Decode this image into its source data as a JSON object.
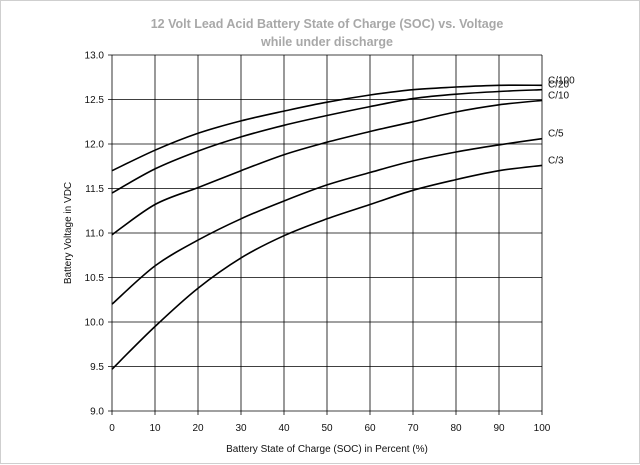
{
  "chart_data": {
    "type": "line",
    "title": "12 Volt Lead Acid Battery State of Charge (SOC) vs. Voltage",
    "subtitle": "while under discharge",
    "xlabel": "Battery State of Charge (SOC) in Percent (%)",
    "ylabel": "Battery Voltage in VDC",
    "xlim": [
      0,
      100
    ],
    "ylim": [
      9.0,
      13.0
    ],
    "xticks": [
      "0",
      "10",
      "20",
      "30",
      "40",
      "50",
      "60",
      "70",
      "80",
      "90",
      "100"
    ],
    "yticks": [
      "9.0",
      "9.5",
      "10.0",
      "10.5",
      "11.0",
      "11.5",
      "12.0",
      "12.5",
      "13.0"
    ],
    "grid": true,
    "x": [
      0,
      10,
      20,
      30,
      40,
      50,
      60,
      70,
      80,
      90,
      100
    ],
    "series": [
      {
        "name": "C/100",
        "values": [
          11.7,
          11.93,
          12.12,
          12.26,
          12.37,
          12.47,
          12.55,
          12.61,
          12.64,
          12.66,
          12.66
        ]
      },
      {
        "name": "C/20",
        "values": [
          11.45,
          11.72,
          11.92,
          12.08,
          12.21,
          12.32,
          12.42,
          12.51,
          12.56,
          12.59,
          12.61
        ]
      },
      {
        "name": "C/10",
        "values": [
          10.98,
          11.32,
          11.51,
          11.7,
          11.88,
          12.02,
          12.14,
          12.25,
          12.36,
          12.44,
          12.49
        ]
      },
      {
        "name": "C/5",
        "values": [
          10.2,
          10.63,
          10.92,
          11.16,
          11.36,
          11.54,
          11.68,
          11.81,
          11.91,
          11.99,
          12.06
        ]
      },
      {
        "name": "C/3",
        "values": [
          9.47,
          9.95,
          10.38,
          10.72,
          10.97,
          11.16,
          11.32,
          11.48,
          11.6,
          11.7,
          11.76
        ]
      }
    ],
    "series_color": "#000000",
    "grid_color": "#000000"
  }
}
